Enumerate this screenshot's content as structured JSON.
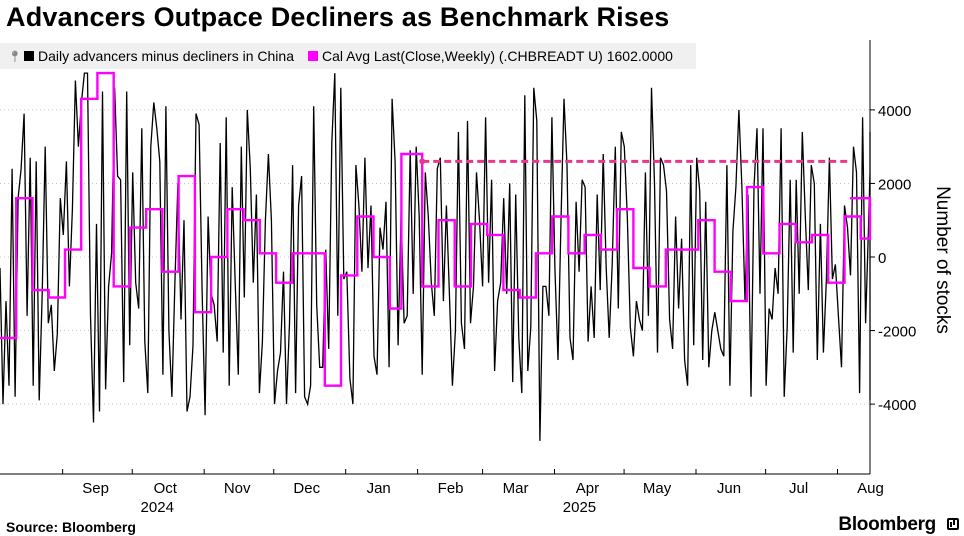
{
  "title": "Advancers Outpace Decliners as Benchmark Rises",
  "legend": [
    {
      "name": "Daily advancers minus decliners in China",
      "color": "#000000"
    },
    {
      "name": "Cal Avg Last(Close,Weekly) (.CHBREADT U) 1602.0000",
      "color": "#ff00ff"
    }
  ],
  "footer": {
    "source": "Source: Bloomberg",
    "brand": "Bloomberg"
  },
  "colors": {
    "daily": "#000000",
    "weekly": "#ff00ff",
    "dashed": "#e8368f",
    "axis": "#000000"
  },
  "chart_data": {
    "type": "line",
    "ylabel": "Number of stocks",
    "ylim": [
      -5900,
      5900
    ],
    "y_ticks": [
      -4000,
      -2000,
      0,
      2000,
      4000
    ],
    "x_range": [
      "2024-08-05",
      "2025-08-15"
    ],
    "month_labels": [
      {
        "label": "Sep",
        "date": "2024-09-01"
      },
      {
        "label": "Oct",
        "date": "2024-10-01"
      },
      {
        "label": "Nov",
        "date": "2024-11-01"
      },
      {
        "label": "Dec",
        "date": "2024-12-01"
      },
      {
        "label": "Jan",
        "date": "2025-01-01"
      },
      {
        "label": "Feb",
        "date": "2025-02-01"
      },
      {
        "label": "Mar",
        "date": "2025-03-01"
      },
      {
        "label": "Apr",
        "date": "2025-04-01"
      },
      {
        "label": "May",
        "date": "2025-05-01"
      },
      {
        "label": "Jun",
        "date": "2025-06-01"
      },
      {
        "label": "Jul",
        "date": "2025-07-01"
      },
      {
        "label": "Aug",
        "date": "2025-08-01"
      }
    ],
    "year_labels": [
      {
        "label": "2024",
        "date": "2024-10-01"
      },
      {
        "label": "2025",
        "date": "2025-04-01"
      }
    ],
    "series": [
      {
        "name": "Daily advancers minus decliners in China",
        "start_date": "2024-08-05",
        "step_days": 1.3,
        "values": [
          -300,
          -4000,
          -1200,
          -3500,
          2400,
          -3800,
          1600,
          2400,
          3900,
          -1600,
          2700,
          -3500,
          2600,
          -3900,
          -1000,
          3000,
          -1800,
          -1300,
          -3100,
          -2100,
          1600,
          600,
          2600,
          -800,
          1300,
          4800,
          3000,
          4200,
          5000,
          5000,
          -1600,
          -4500,
          900,
          -4200,
          4500,
          -3600,
          -800,
          100,
          4600,
          2200,
          2100,
          -3400,
          4500,
          -2400,
          2300,
          -700,
          -1400,
          3500,
          -2300,
          -3700,
          3000,
          4200,
          3500,
          2600,
          -3200,
          4100,
          -2000,
          -3800,
          -700,
          2000,
          -1700,
          1000,
          -4200,
          -3800,
          -2400,
          3900,
          3600,
          -900,
          -4300,
          1100,
          -1000,
          -1300,
          -2300,
          3100,
          -2600,
          3800,
          -3500,
          1900,
          -700,
          -3200,
          3000,
          -1100,
          4000,
          2400,
          -700,
          1700,
          -3700,
          -2300,
          1000,
          2800,
          1000,
          -4000,
          -3100,
          -2600,
          -400,
          -4000,
          -1800,
          2500,
          -3700,
          1400,
          2200,
          -3800,
          -4000,
          -3500,
          4100,
          -1300,
          -3000,
          -3000,
          200,
          -2500,
          3100,
          5000,
          -1600,
          4600,
          -600,
          -400,
          -3300,
          -4000,
          2500,
          1400,
          -400,
          2700,
          -300,
          1400,
          -2700,
          -3200,
          800,
          200,
          1500,
          -3000,
          4300,
          2600,
          -2400,
          1200,
          -1800,
          -1600,
          2900,
          -1000,
          3000,
          1100,
          -3200,
          2300,
          1100,
          -700,
          -1600,
          2400,
          2700,
          -1200,
          1400,
          -1000,
          -3500,
          -2000,
          3400,
          -1800,
          -2500,
          3700,
          -1800,
          -800,
          2300,
          1000,
          -800,
          3800,
          -700,
          2100,
          -3100,
          -1200,
          -700,
          1600,
          -1000,
          2000,
          -3400,
          1700,
          -2200,
          -3700,
          4400,
          -3100,
          -1900,
          4600,
          3700,
          -5000,
          -800,
          -800,
          -1600,
          3800,
          -300,
          -2800,
          1000,
          4300,
          2500,
          -2200,
          -2800,
          1500,
          -400,
          2100,
          1900,
          -2300,
          -800,
          -2200,
          1700,
          -900,
          2800,
          -300,
          -2200,
          -200,
          3000,
          -1400,
          3400,
          3000,
          1100,
          -1900,
          -2700,
          -1200,
          -1700,
          -2000,
          2300,
          -1600,
          4600,
          2000,
          -2600,
          2700,
          2500,
          1800,
          -1700,
          -2500,
          1100,
          -1400,
          500,
          -2800,
          -3500,
          2500,
          -2400,
          2700,
          1800,
          -2800,
          1500,
          -3000,
          -2000,
          -1500,
          -2000,
          -2500,
          -2700,
          2500,
          -3500,
          700,
          1900,
          4000,
          1900,
          -1200,
          1700,
          -3800,
          1900,
          3500,
          -1000,
          3500,
          -3500,
          -1400,
          -1700,
          -300,
          -1000,
          3500,
          -3800,
          -1900,
          2100,
          -2600,
          2100,
          -1000,
          3400,
          1100,
          -900,
          2500,
          2000,
          -2800,
          900,
          -2600,
          -600,
          2700,
          -600,
          -200,
          -1600,
          -3000,
          1400,
          800,
          -500,
          3000,
          2300,
          -3700,
          3800,
          -1800,
          900,
          2300,
          -1500,
          2900,
          3100,
          1000,
          -1200,
          2500,
          -1800,
          -900,
          2600,
          -3900,
          900,
          2000,
          -800,
          2300,
          -3200,
          1100,
          3400,
          1000,
          1500
        ]
      },
      {
        "name": "Cal Avg Last(Close,Weekly) (.CHBREADT U) 1602.0000",
        "steps": [
          {
            "start": "2024-08-05",
            "value": -2200
          },
          {
            "start": "2024-08-12",
            "value": 1600
          },
          {
            "start": "2024-08-19",
            "value": -900
          },
          {
            "start": "2024-08-26",
            "value": -1100
          },
          {
            "start": "2024-09-02",
            "value": 200
          },
          {
            "start": "2024-09-09",
            "value": 4300
          },
          {
            "start": "2024-09-16",
            "value": 5000
          },
          {
            "start": "2024-09-23",
            "value": -800
          },
          {
            "start": "2024-09-30",
            "value": 800
          },
          {
            "start": "2024-10-07",
            "value": 1300
          },
          {
            "start": "2024-10-14",
            "value": -400
          },
          {
            "start": "2024-10-21",
            "value": 2200
          },
          {
            "start": "2024-10-28",
            "value": -1500
          },
          {
            "start": "2024-11-04",
            "value": 0
          },
          {
            "start": "2024-11-11",
            "value": 1300
          },
          {
            "start": "2024-11-18",
            "value": 1000
          },
          {
            "start": "2024-11-25",
            "value": 100
          },
          {
            "start": "2024-12-02",
            "value": -700
          },
          {
            "start": "2024-12-09",
            "value": 100
          },
          {
            "start": "2024-12-16",
            "value": 100
          },
          {
            "start": "2024-12-23",
            "value": -3500
          },
          {
            "start": "2024-12-30",
            "value": -500
          },
          {
            "start": "2025-01-06",
            "value": 1100
          },
          {
            "start": "2025-01-13",
            "value": 0
          },
          {
            "start": "2025-01-20",
            "value": -1400
          },
          {
            "start": "2025-01-25",
            "value": 2800
          },
          {
            "start": "2025-02-03",
            "value": -800
          },
          {
            "start": "2025-02-10",
            "value": 1000
          },
          {
            "start": "2025-02-17",
            "value": -800
          },
          {
            "start": "2025-02-24",
            "value": 900
          },
          {
            "start": "2025-03-03",
            "value": 600
          },
          {
            "start": "2025-03-10",
            "value": -900
          },
          {
            "start": "2025-03-17",
            "value": -1100
          },
          {
            "start": "2025-03-24",
            "value": 100
          },
          {
            "start": "2025-03-31",
            "value": 1100
          },
          {
            "start": "2025-04-07",
            "value": 100
          },
          {
            "start": "2025-04-14",
            "value": 600
          },
          {
            "start": "2025-04-21",
            "value": 200
          },
          {
            "start": "2025-04-28",
            "value": 1300
          },
          {
            "start": "2025-05-05",
            "value": -300
          },
          {
            "start": "2025-05-12",
            "value": -800
          },
          {
            "start": "2025-05-19",
            "value": 200
          },
          {
            "start": "2025-05-26",
            "value": 200
          },
          {
            "start": "2025-06-02",
            "value": 1000
          },
          {
            "start": "2025-06-09",
            "value": -400
          },
          {
            "start": "2025-06-16",
            "value": -1200
          },
          {
            "start": "2025-06-23",
            "value": 1900
          },
          {
            "start": "2025-06-30",
            "value": 100
          },
          {
            "start": "2025-07-07",
            "value": 900
          },
          {
            "start": "2025-07-14",
            "value": 400
          },
          {
            "start": "2025-07-21",
            "value": 600
          },
          {
            "start": "2025-07-28",
            "value": -700
          },
          {
            "start": "2025-08-04",
            "value": 1100
          },
          {
            "start": "2025-08-11",
            "value": 500
          },
          {
            "start": "2025-08-15",
            "value": 1600
          }
        ]
      }
    ],
    "reference_line": {
      "from": "2025-02-03",
      "to": "2025-08-15",
      "value": 2600,
      "style": "dashed"
    }
  }
}
